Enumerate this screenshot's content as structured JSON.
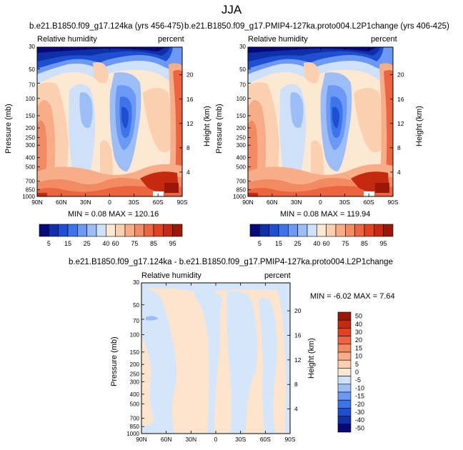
{
  "title": "JJA",
  "panels": [
    {
      "title": "b.e21.B1850.f09_g17.124ka (yrs 456-475)",
      "left_label": "Relative humidity",
      "right_label": "percent",
      "y_label": "Pressure (mb)",
      "y2_label": "Height (km)",
      "stats": "MIN =   0.08  MAX = 120.16"
    },
    {
      "title": "b.e21.B1850.f09_g17.PMIP4-127ka.proto004.L2P1change (yrs 406-425)",
      "left_label": "Relative humidity",
      "right_label": "percent",
      "y_label": "Pressure (mb)",
      "y2_label": "Height (km)",
      "stats": "MIN =   0.08  MAX = 119.94"
    },
    {
      "title": "b.e21.B1850.f09_g17.124ka - b.e21.B1850.f09_g17.PMIP4-127ka.proto004.L2P1change",
      "left_label": "Relative humidity",
      "right_label": "percent",
      "y_label": "Pressure (mb)",
      "y2_label": "Height (km)",
      "stats": "MIN =  -6.02  MAX =   7.64"
    }
  ],
  "chart_data": {
    "type": "heatmap",
    "x_ticks": [
      "90N",
      "60N",
      "30N",
      "0",
      "30S",
      "60S",
      "90S"
    ],
    "pressure_ticks": [
      "30",
      "50",
      "70",
      "100",
      "150",
      "200",
      "250",
      "300",
      "400",
      "500",
      "700",
      "850",
      "1000"
    ],
    "pressure_values": [
      30,
      50,
      70,
      100,
      150,
      200,
      250,
      300,
      400,
      500,
      700,
      850,
      1000
    ],
    "height_ticks": [
      "20",
      "16",
      "12",
      "8",
      "4"
    ],
    "height_values_km": [
      20,
      16,
      12,
      8,
      4
    ],
    "ylim_mb": [
      30,
      1000
    ],
    "colorbar_labels": [
      "5",
      "15",
      "25",
      "40",
      "60",
      "75",
      "85",
      "95"
    ],
    "colorbar_colors": [
      "#08087a",
      "#0f2fa8",
      "#1e4fd0",
      "#3d74ea",
      "#6b99f3",
      "#9dbdf7",
      "#cfe0f9",
      "#fde8d4",
      "#fbd0b0",
      "#f6ad88",
      "#f28a62",
      "#ec6440",
      "#e04222",
      "#c42a10",
      "#9a1808"
    ],
    "diff_colorbar_labels": [
      "50",
      "40",
      "30",
      "20",
      "15",
      "10",
      "5",
      "0",
      "-5",
      "-10",
      "-15",
      "-20",
      "-30",
      "-40",
      "-50"
    ],
    "diff_colorbar_colors": [
      "#9a1808",
      "#c42a10",
      "#e04222",
      "#ec6440",
      "#f28a62",
      "#f6ad88",
      "#fbd0b0",
      "#fde8d4",
      "#cfe0f9",
      "#9dbdf7",
      "#6b99f3",
      "#3d74ea",
      "#1e4fd0",
      "#0f2fa8",
      "#08087a"
    ],
    "diff_colors": {
      "positive": "#fde4cc",
      "negative": "#d6e6fa"
    }
  }
}
